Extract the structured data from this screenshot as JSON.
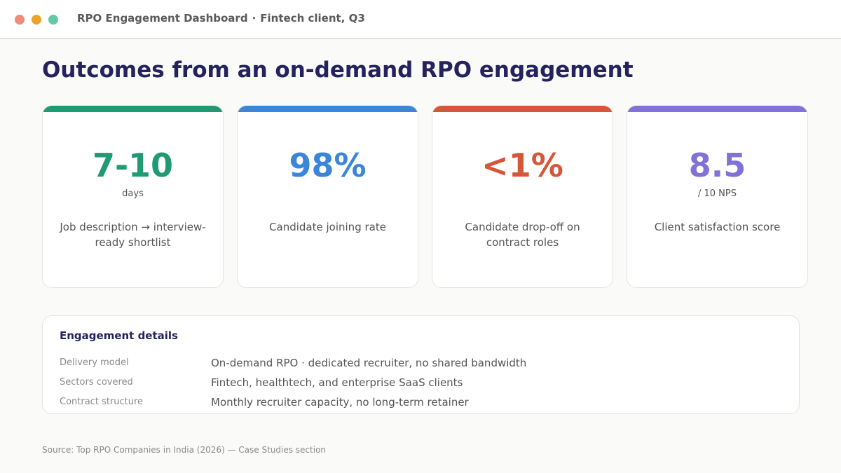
{
  "window": {
    "title": "RPO Engagement Dashboard",
    "separator": "·",
    "subtitle": "Fintech client, Q3"
  },
  "page": {
    "heading": "Outcomes from an on-demand RPO engagement"
  },
  "cards": [
    {
      "value": "7-10",
      "unit": "days",
      "description": "Job description → interview-ready shortlist",
      "accent": "#1f9a73"
    },
    {
      "value": "98%",
      "unit": "",
      "description": "Candidate joining rate",
      "accent": "#3a86d8"
    },
    {
      "value": "<1%",
      "unit": "",
      "description": "Candidate drop-off on contract roles",
      "accent": "#d5573a"
    },
    {
      "value": "8.5",
      "unit": "/ 10 NPS",
      "description": "Client satisfaction score",
      "accent": "#8271d6"
    }
  ],
  "details": {
    "title": "Engagement details",
    "rows": [
      {
        "label": "Delivery model",
        "value": "On-demand RPO · dedicated recruiter, no shared bandwidth"
      },
      {
        "label": "Sectors covered",
        "value": "Fintech, healthtech, and enterprise SaaS clients"
      },
      {
        "label": "Contract structure",
        "value": "Monthly recruiter capacity, no long-term retainer"
      }
    ]
  },
  "source": "Source: Top RPO Companies in India (2026) — Case Studies section"
}
